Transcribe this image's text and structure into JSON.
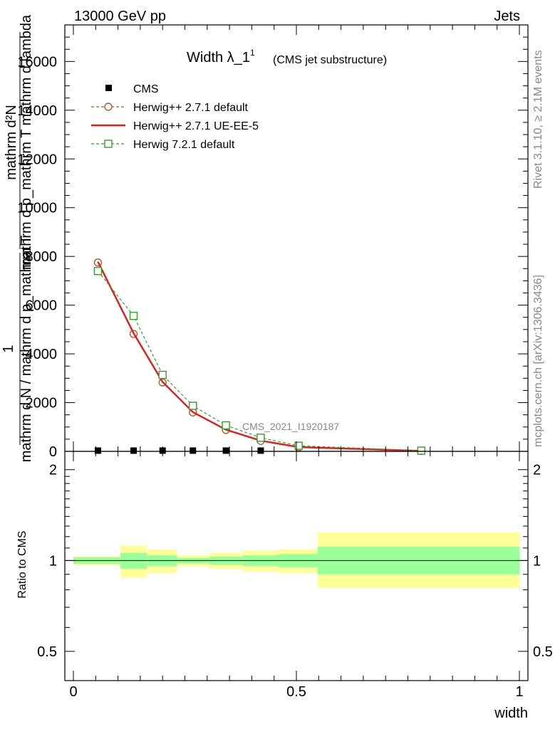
{
  "header": {
    "top_left": "13000 GeV pp",
    "top_right": "Jets",
    "side_right_top": "Rivet 3.1.10, ≥ 2.1M events",
    "side_right_bottom": "mcplots.cern.ch [arXiv:1306.3436]"
  },
  "chart_data": [
    {
      "type": "line",
      "title": "Width λ_1",
      "title_superscript": "1",
      "subtitle": "(CMS jet substructure)",
      "ylabel_line1": "mathrm d²N",
      "ylabel_line2": "mathrm d p_mathrm T mathrm d lambda",
      "ylabel_prefix": "1",
      "ylabel_denominator": "mathrm d N / mathrm d p_mathrm T",
      "analysis_label": "CMS_2021_I1920187",
      "xlim": [
        0,
        1
      ],
      "ylim": [
        0,
        17500
      ],
      "yticks": [
        2000,
        4000,
        6000,
        8000,
        10000,
        12000,
        14000,
        16000
      ],
      "series": [
        {
          "name": "CMS",
          "style": "markers",
          "color": "#000000",
          "x": [
            0.055,
            0.135,
            0.2,
            0.268,
            0.342,
            0.42,
            0.78
          ],
          "y": [
            30,
            30,
            30,
            30,
            30,
            30,
            30
          ]
        },
        {
          "name": "Herwig++ 2.7.1 default",
          "style": "dashed-circle",
          "color": "#b15928",
          "x": [
            0.055,
            0.135,
            0.2,
            0.268,
            0.342,
            0.42,
            0.505,
            0.78
          ],
          "y": [
            7750,
            4820,
            2830,
            1600,
            880,
            430,
            170,
            20
          ]
        },
        {
          "name": "Herwig++ 2.7.1 UE-EE-5",
          "style": "solid",
          "color": "#e41a1c",
          "x": [
            0.055,
            0.135,
            0.2,
            0.268,
            0.342,
            0.42,
            0.505,
            0.78
          ],
          "y": [
            7780,
            4850,
            2850,
            1610,
            890,
            440,
            175,
            20
          ]
        },
        {
          "name": "Herwig 7.2.1 default",
          "style": "dashed-square",
          "color": "#33a02c",
          "x": [
            0.055,
            0.135,
            0.2,
            0.268,
            0.342,
            0.42,
            0.505,
            0.78
          ],
          "y": [
            7400,
            5560,
            3140,
            1870,
            1070,
            560,
            230,
            30
          ]
        }
      ]
    },
    {
      "type": "area",
      "ylabel": "Ratio to CMS",
      "xlabel": "width",
      "xlim": [
        0,
        1
      ],
      "ylim": [
        0.4,
        2.3
      ],
      "yscale": "log",
      "yticks": [
        0.5,
        1,
        2
      ],
      "xticks": [
        0,
        0.5,
        1
      ],
      "bands": [
        {
          "x0": 0.0,
          "x1": 0.105,
          "inner": [
            0.975,
            1.025
          ],
          "outer": [
            0.965,
            1.035
          ]
        },
        {
          "x0": 0.105,
          "x1": 0.165,
          "inner": [
            0.94,
            1.06
          ],
          "outer": [
            0.88,
            1.12
          ]
        },
        {
          "x0": 0.165,
          "x1": 0.232,
          "inner": [
            0.96,
            1.04
          ],
          "outer": [
            0.91,
            1.09
          ]
        },
        {
          "x0": 0.232,
          "x1": 0.305,
          "inner": [
            0.98,
            1.02
          ],
          "outer": [
            0.96,
            1.04
          ]
        },
        {
          "x0": 0.305,
          "x1": 0.38,
          "inner": [
            0.97,
            1.03
          ],
          "outer": [
            0.94,
            1.06
          ]
        },
        {
          "x0": 0.38,
          "x1": 0.46,
          "inner": [
            0.96,
            1.04
          ],
          "outer": [
            0.92,
            1.08
          ]
        },
        {
          "x0": 0.46,
          "x1": 0.548,
          "inner": [
            0.95,
            1.05
          ],
          "outer": [
            0.91,
            1.09
          ]
        },
        {
          "x0": 0.548,
          "x1": 1.0,
          "inner": [
            0.9,
            1.11
          ],
          "outer": [
            0.81,
            1.24
          ]
        }
      ]
    }
  ]
}
